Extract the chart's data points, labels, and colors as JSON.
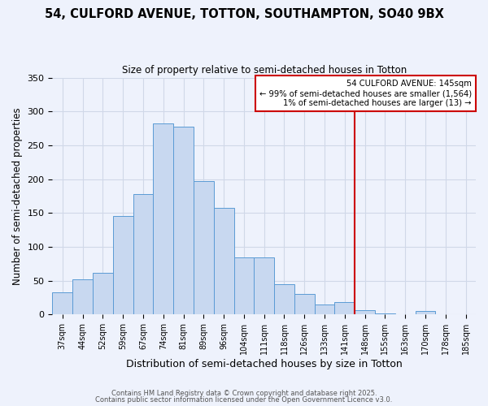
{
  "title": "54, CULFORD AVENUE, TOTTON, SOUTHAMPTON, SO40 9BX",
  "subtitle": "Size of property relative to semi-detached houses in Totton",
  "xlabel": "Distribution of semi-detached houses by size in Totton",
  "ylabel": "Number of semi-detached properties",
  "bin_labels": [
    "37sqm",
    "44sqm",
    "52sqm",
    "59sqm",
    "67sqm",
    "74sqm",
    "81sqm",
    "89sqm",
    "96sqm",
    "104sqm",
    "111sqm",
    "118sqm",
    "126sqm",
    "133sqm",
    "141sqm",
    "148sqm",
    "155sqm",
    "163sqm",
    "170sqm",
    "178sqm",
    "185sqm"
  ],
  "bar_values": [
    33,
    52,
    62,
    145,
    178,
    282,
    278,
    197,
    158,
    84,
    84,
    45,
    31,
    15,
    18,
    7,
    2,
    1,
    5,
    1,
    0
  ],
  "bar_color": "#c8d8f0",
  "bar_edge_color": "#5b9bd5",
  "grid_color": "#d0d8e8",
  "background_color": "#eef2fc",
  "vline_color": "#cc0000",
  "annotation_title": "54 CULFORD AVENUE: 145sqm",
  "annotation_line1": "← 99% of semi-detached houses are smaller (1,564)",
  "annotation_line2": "1% of semi-detached houses are larger (13) →",
  "annotation_box_color": "#cc0000",
  "footer1": "Contains HM Land Registry data © Crown copyright and database right 2025.",
  "footer2": "Contains public sector information licensed under the Open Government Licence v3.0.",
  "ylim": [
    0,
    350
  ],
  "yticks": [
    0,
    50,
    100,
    150,
    200,
    250,
    300,
    350
  ]
}
